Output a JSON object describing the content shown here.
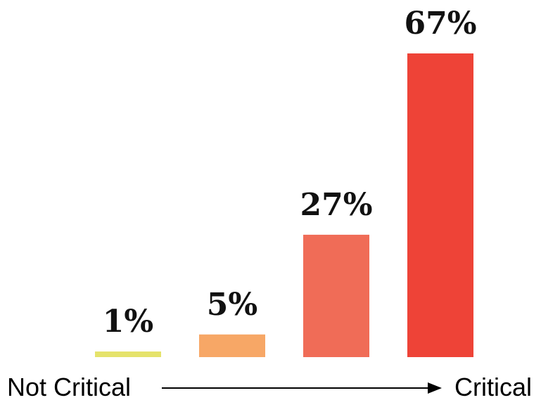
{
  "chart_data": {
    "type": "bar",
    "categories": [
      "",
      "",
      "",
      ""
    ],
    "values": [
      1,
      5,
      27,
      67
    ],
    "data_labels": [
      "1%",
      "5%",
      "27%",
      "67%"
    ],
    "bar_colors": [
      "#e5e36b",
      "#f7a766",
      "#f06c57",
      "#ee4337"
    ],
    "ylim": [
      0,
      67
    ],
    "grid": false,
    "legend": "none",
    "axis": {
      "start_label": "Not Critical",
      "end_label": "Critical",
      "arrow_direction": "right"
    }
  }
}
